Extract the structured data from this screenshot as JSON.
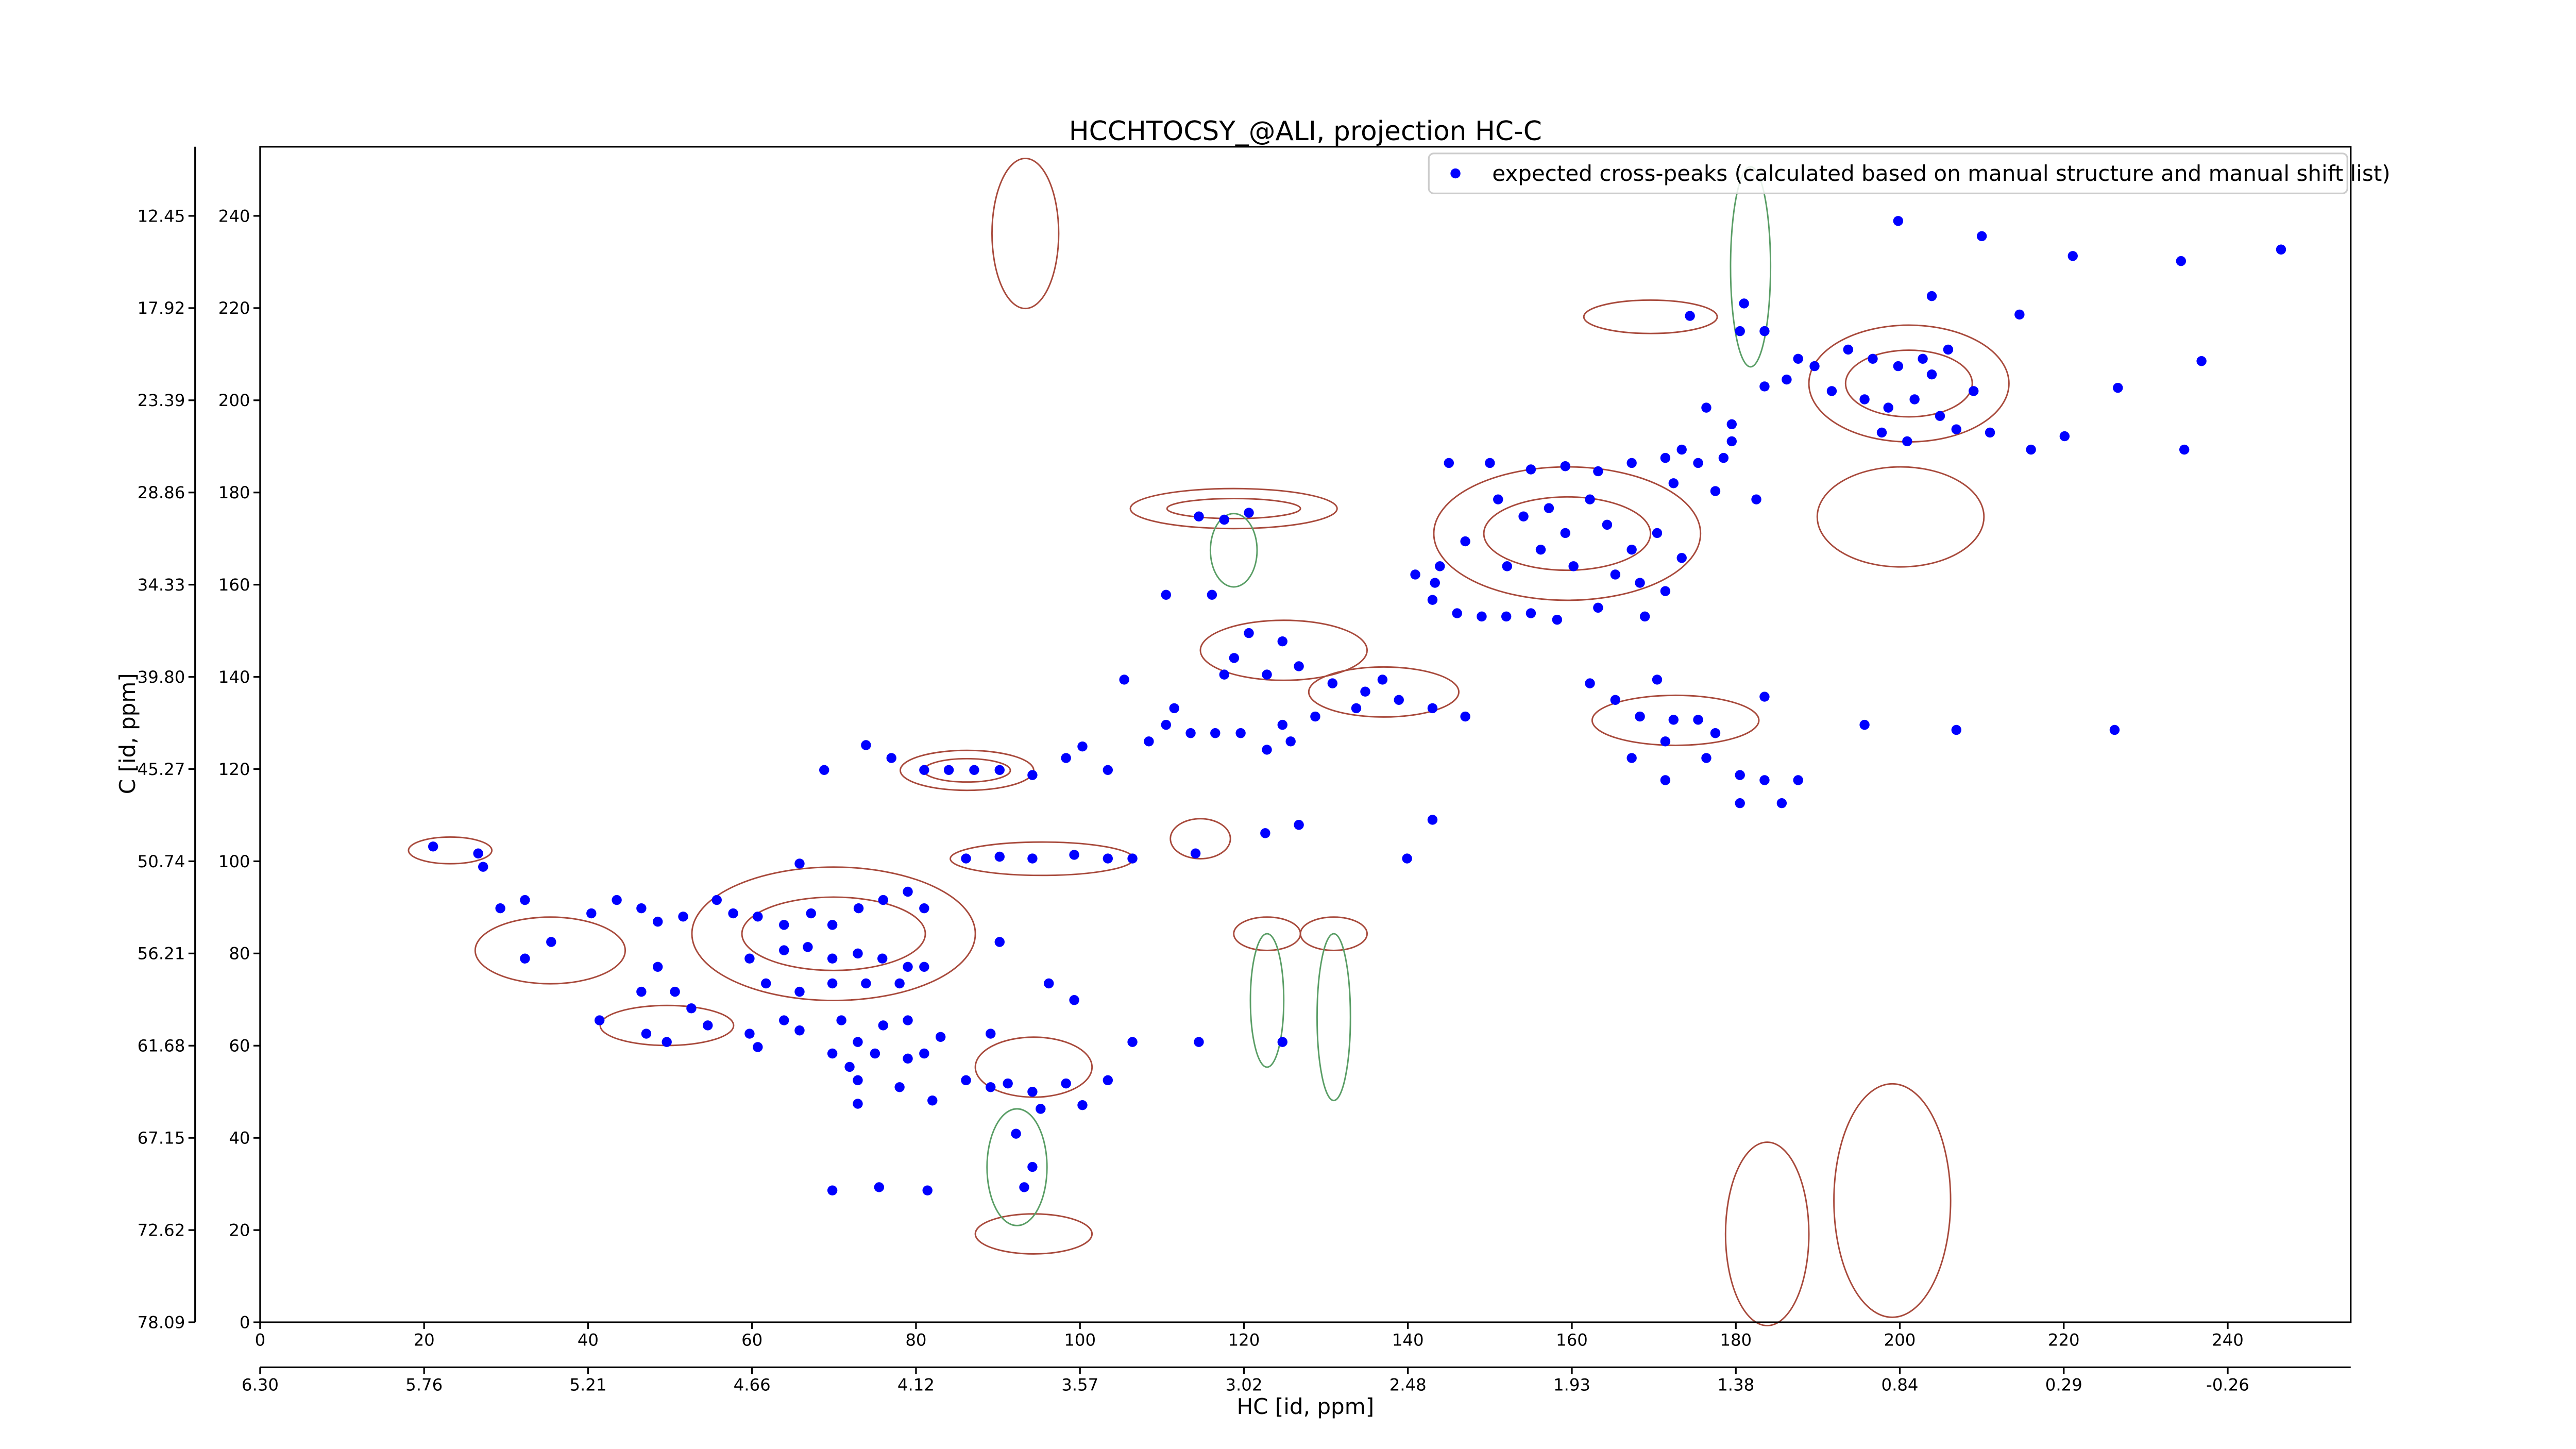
{
  "chart_data": {
    "type": "scatter",
    "title": "HCCHTOCSY_@ALI, projection HC-C",
    "xlabel": "HC [id, ppm]",
    "ylabel": "C [id, ppm]",
    "xlim": [
      0,
      255
    ],
    "ylim": [
      0,
      255
    ],
    "xticks": [
      0,
      20,
      40,
      60,
      80,
      100,
      120,
      140,
      160,
      180,
      200,
      220,
      240
    ],
    "yticks": [
      0,
      20,
      40,
      60,
      80,
      100,
      120,
      140,
      160,
      180,
      200,
      220,
      240
    ],
    "x2ticks": [
      {
        "value": 0,
        "label": "6.30"
      },
      {
        "value": 20,
        "label": "5.76"
      },
      {
        "value": 40,
        "label": "5.21"
      },
      {
        "value": 60,
        "label": "4.66"
      },
      {
        "value": 80,
        "label": "4.12"
      },
      {
        "value": 100,
        "label": "3.57"
      },
      {
        "value": 120,
        "label": "3.02"
      },
      {
        "value": 140,
        "label": "2.48"
      },
      {
        "value": 160,
        "label": "1.93"
      },
      {
        "value": 180,
        "label": "1.38"
      },
      {
        "value": 200,
        "label": "0.84"
      },
      {
        "value": 220,
        "label": "0.29"
      },
      {
        "value": 240,
        "label": "-0.26"
      }
    ],
    "y2ticks": [
      {
        "value": 0,
        "label": "78.09"
      },
      {
        "value": 20,
        "label": "72.62"
      },
      {
        "value": 40,
        "label": "67.15"
      },
      {
        "value": 60,
        "label": "61.68"
      },
      {
        "value": 80,
        "label": "56.21"
      },
      {
        "value": 100,
        "label": "50.74"
      },
      {
        "value": 120,
        "label": "45.27"
      },
      {
        "value": 140,
        "label": "39.80"
      },
      {
        "value": 160,
        "label": "34.33"
      },
      {
        "value": 180,
        "label": "28.86"
      },
      {
        "value": 200,
        "label": "23.39"
      },
      {
        "value": 220,
        "label": "17.92"
      },
      {
        "value": 240,
        "label": "12.45"
      }
    ],
    "legend": "upper right",
    "series": [
      {
        "name": "expected cross-peaks (calculated based on manual structure and manual shift list)",
        "color": "#0000ff",
        "x": [
          199.8,
          210,
          221.1,
          234.3,
          246.5,
          203.9,
          214.6,
          236.8,
          226.6,
          234.7,
          174.4,
          181,
          183.5,
          180.5,
          187.6,
          176.4,
          179.5,
          183.5,
          186.2,
          189.6,
          193.7,
          196.7,
          199.8,
          202.8,
          203.9,
          195.7,
          198.6,
          201.8,
          197.8,
          200.9,
          204.9,
          206.9,
          211,
          216,
          220.1,
          209,
          205.9,
          191.7,
          145,
          150,
          155,
          159.2,
          163.2,
          167.3,
          171.4,
          175.4,
          178.5,
          172.4,
          177.5,
          182.5,
          173.4,
          179.5,
          151,
          154.1,
          157.2,
          159.2,
          156.2,
          152.1,
          162.2,
          164.3,
          167.3,
          170.4,
          173.4,
          165.3,
          160.2,
          147,
          143.9,
          140.9,
          163.2,
          168.3,
          168.9,
          171.4,
          146,
          149,
          152,
          155,
          158.2,
          143,
          143.3,
          114.5,
          117.6,
          120.6,
          110.5,
          116.1,
          120.6,
          124.7,
          118.8,
          122.8,
          117.6,
          126.7,
          130.8,
          134.8,
          136.9,
          133.7,
          138.9,
          143,
          147,
          128.7,
          124.7,
          119.6,
          116.5,
          113.5,
          110.5,
          108.4,
          111.5,
          105.4,
          122.8,
          125.7,
          162.2,
          165.3,
          168.3,
          170.4,
          172.4,
          175.4,
          177.5,
          171.4,
          167.3,
          171.4,
          176.4,
          180.5,
          183.5,
          187.6,
          180.5,
          185.6,
          183.5,
          195.7,
          206.9,
          226.2,
          73.9,
          77,
          81,
          84,
          87.1,
          90.2,
          94.2,
          98.3,
          68.8,
          100.3,
          103.4,
          86.1,
          90.2,
          94.2,
          99.3,
          103.4,
          106.4,
          114.1,
          122.6,
          126.7,
          143,
          139.9,
          21.1,
          26.6,
          27.2,
          65.8,
          29.3,
          32.3,
          35.5,
          32.3,
          40.4,
          43.5,
          46.5,
          48.5,
          51.6,
          55.7,
          57.7,
          60.7,
          63.9,
          67.2,
          69.8,
          73,
          76,
          79,
          81,
          63.9,
          66.8,
          69.8,
          72.9,
          75.9,
          79,
          59.7,
          61.7,
          65.8,
          69.8,
          73.9,
          78,
          81,
          48.5,
          50.6,
          46.5,
          52.6,
          41.4,
          47.1,
          49.6,
          54.6,
          59.7,
          60.7,
          63.9,
          65.8,
          70.9,
          72.9,
          71.9,
          76,
          79,
          69.8,
          72.9,
          75,
          79,
          81,
          83,
          86.1,
          89.1,
          91.2,
          94.2,
          95.2,
          98.3,
          100.3,
          103.4,
          106.4,
          82,
          78,
          72.9,
          92.2,
          94.2,
          93.2,
          75.5,
          81.4,
          69.8,
          96.2,
          99.3,
          89.1,
          124.7,
          114.5,
          90.2
        ],
        "values": [
          238.9,
          235.6,
          231.3,
          230.2,
          232.7,
          222.6,
          218.6,
          208.5,
          202.7,
          189.3,
          218.3,
          221,
          215,
          215,
          209,
          198.4,
          194.8,
          203,
          204.5,
          207.4,
          211,
          209,
          207.4,
          209,
          205.6,
          200.2,
          198.4,
          200.2,
          193,
          191.1,
          196.6,
          193.7,
          193,
          189.3,
          192.2,
          202,
          211,
          202,
          186.4,
          186.4,
          185,
          185.7,
          184.6,
          186.4,
          187.5,
          186.4,
          187.5,
          182,
          180.3,
          178.5,
          189.3,
          191.1,
          178.5,
          174.8,
          176.6,
          171.2,
          167.6,
          164,
          178.5,
          173,
          167.6,
          171.2,
          165.8,
          162.2,
          164,
          169.4,
          164,
          162.2,
          155,
          160.4,
          153.1,
          158.6,
          153.8,
          153.1,
          153.1,
          153.8,
          152.4,
          156.7,
          160.4,
          174.8,
          174.1,
          175.6,
          157.8,
          157.8,
          149.5,
          147.7,
          144.1,
          140.5,
          140.5,
          142.3,
          138.6,
          136.8,
          139.4,
          133.2,
          135,
          133.2,
          131.4,
          131.4,
          129.6,
          127.8,
          127.8,
          127.8,
          129.6,
          126,
          133.2,
          139.4,
          124.2,
          126,
          138.6,
          135,
          131.4,
          139.4,
          130.7,
          130.7,
          127.8,
          126,
          122.4,
          117.6,
          122.4,
          118.7,
          117.6,
          117.6,
          112.6,
          112.6,
          135.7,
          129.6,
          128.5,
          128.5,
          125.2,
          122.4,
          119.8,
          119.8,
          119.8,
          119.8,
          118.7,
          122.4,
          119.8,
          124.9,
          119.8,
          100.6,
          101,
          100.6,
          101.4,
          100.6,
          100.6,
          101.7,
          106.1,
          107.9,
          109,
          100.6,
          103.2,
          101.7,
          98.8,
          99.5,
          89.8,
          91.6,
          82.5,
          78.9,
          88.7,
          91.6,
          89.8,
          86.9,
          88,
          91.6,
          88.7,
          88,
          86.2,
          88.7,
          86.2,
          89.8,
          91.6,
          93.4,
          89.8,
          80.7,
          81.4,
          78.9,
          80,
          78.9,
          77.1,
          78.9,
          73.5,
          71.7,
          73.5,
          73.5,
          73.5,
          77.1,
          77.1,
          71.7,
          71.7,
          68.1,
          65.5,
          62.6,
          60.8,
          64.4,
          62.6,
          59.7,
          65.5,
          63.3,
          65.5,
          60.8,
          55.4,
          64.4,
          65.5,
          58.3,
          52.5,
          58.3,
          57.2,
          58.3,
          61.9,
          52.5,
          51,
          51.8,
          50,
          46.3,
          51.8,
          47.1,
          52.5,
          60.8,
          48.1,
          51,
          47.4,
          40.9,
          33.7,
          29.3,
          29.3,
          28.6,
          28.6,
          73.5,
          69.9,
          62.6,
          60.8,
          60.8,
          82.5
        ]
      }
    ]
  }
}
